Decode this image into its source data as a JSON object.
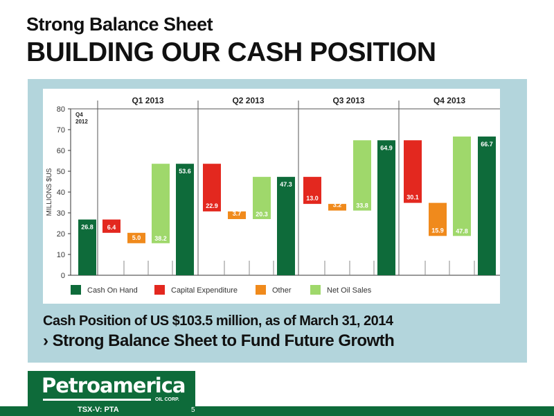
{
  "slide": {
    "subtitle": "Strong Balance Sheet",
    "title": "BUILDING OUR CASH POSITION",
    "caption_line1": "Cash Position of US $103.5 million, as of March 31, 2014",
    "caption_line2": "› Strong Balance Sheet to Fund Future Growth",
    "logo_name": "Petroamerica",
    "logo_corp": "OIL CORP.",
    "ticker": "TSX-V: PTA",
    "page_number": "5"
  },
  "colors": {
    "cash": "#0e6b3a",
    "capex": "#e3281f",
    "other": "#f08a1c",
    "sales": "#9fd86b",
    "panel": "#b3d5dc",
    "brand": "#0e6b3a"
  },
  "chart_data": {
    "type": "bar",
    "subtype": "waterfall",
    "title": "",
    "xlabel": "",
    "ylabel": "MILLIONS $US",
    "ylim": [
      0,
      80
    ],
    "yticks": [
      0,
      10,
      20,
      30,
      40,
      50,
      60,
      70,
      80
    ],
    "grid": false,
    "legend_position": "bottom",
    "legend": [
      {
        "label": "Cash On Hand",
        "key": "cash"
      },
      {
        "label": "Capital Expenditure",
        "key": "capex"
      },
      {
        "label": "Other",
        "key": "other"
      },
      {
        "label": "Net Oil Sales",
        "key": "sales"
      }
    ],
    "periods": [
      {
        "label": "Q4 2012",
        "label_lines": [
          "Q4",
          "2012"
        ]
      },
      {
        "label": "Q1 2013"
      },
      {
        "label": "Q2 2013"
      },
      {
        "label": "Q3 2013"
      },
      {
        "label": "Q4 2013"
      }
    ],
    "bars": [
      {
        "period": "Q4 2012",
        "key": "cash",
        "start": 0,
        "end": 26.8,
        "label": "26.8"
      },
      {
        "period": "Q1 2013",
        "key": "capex",
        "start": 26.8,
        "end": 20.4,
        "label": "6.4"
      },
      {
        "period": "Q1 2013",
        "key": "other",
        "start": 20.4,
        "end": 15.4,
        "label": "5.0"
      },
      {
        "period": "Q1 2013",
        "key": "sales",
        "start": 15.4,
        "end": 53.6,
        "label": "38.2"
      },
      {
        "period": "Q1 2013",
        "key": "cash",
        "start": 0,
        "end": 53.6,
        "label": "53.6"
      },
      {
        "period": "Q2 2013",
        "key": "capex",
        "start": 53.6,
        "end": 30.7,
        "label": "22.9"
      },
      {
        "period": "Q2 2013",
        "key": "other",
        "start": 30.7,
        "end": 27.0,
        "label": "3.7"
      },
      {
        "period": "Q2 2013",
        "key": "sales",
        "start": 27.0,
        "end": 47.3,
        "label": "20.3"
      },
      {
        "period": "Q2 2013",
        "key": "cash",
        "start": 0,
        "end": 47.3,
        "label": "47.3"
      },
      {
        "period": "Q3 2013",
        "key": "capex",
        "start": 47.3,
        "end": 34.3,
        "label": "13.0"
      },
      {
        "period": "Q3 2013",
        "key": "other",
        "start": 34.3,
        "end": 31.1,
        "label": "3.2"
      },
      {
        "period": "Q3 2013",
        "key": "sales",
        "start": 31.1,
        "end": 64.9,
        "label": "33.8"
      },
      {
        "period": "Q3 2013",
        "key": "cash",
        "start": 0,
        "end": 64.9,
        "label": "64.9"
      },
      {
        "period": "Q4 2013",
        "key": "capex",
        "start": 64.9,
        "end": 34.8,
        "label": "30.1"
      },
      {
        "period": "Q4 2013",
        "key": "other",
        "start": 34.8,
        "end": 18.9,
        "label": "15.9"
      },
      {
        "period": "Q4 2013",
        "key": "sales",
        "start": 18.9,
        "end": 66.7,
        "label": "47.8"
      },
      {
        "period": "Q4 2013",
        "key": "cash",
        "start": 0,
        "end": 66.7,
        "label": "66.7"
      }
    ]
  }
}
